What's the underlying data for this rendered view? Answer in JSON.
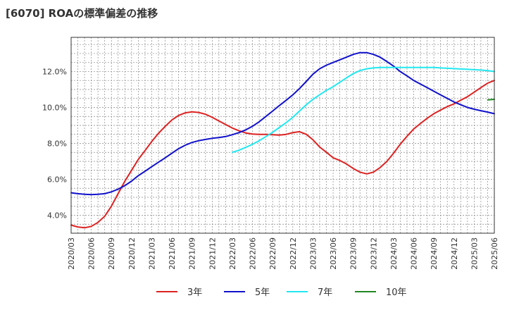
{
  "title": "[6070]  ROAの標準偏差の推移",
  "chart_data": {
    "type": "line",
    "title": "[6070]  ROAの標準偏差の推移",
    "x_ticks": [
      "2020/03",
      "2020/06",
      "2020/09",
      "2020/12",
      "2021/03",
      "2021/06",
      "2021/09",
      "2021/12",
      "2022/03",
      "2022/06",
      "2022/09",
      "2022/12",
      "2023/03",
      "2023/06",
      "2023/09",
      "2023/12",
      "2024/03",
      "2024/06",
      "2024/09",
      "2024/12",
      "2025/03",
      "2025/06"
    ],
    "y_ticks": [
      "4.0%",
      "6.0%",
      "8.0%",
      "10.0%",
      "12.0%"
    ],
    "y_tick_values": [
      4,
      6,
      8,
      10,
      12
    ],
    "ylim": [
      3.0,
      13.9
    ],
    "xlim": [
      0,
      21
    ],
    "grid": true,
    "legend_position": "bottom",
    "series": [
      {
        "name": "3年",
        "color": "#dd2222",
        "x": [
          0,
          0.33,
          0.67,
          1,
          1.33,
          1.67,
          2,
          2.33,
          2.67,
          3,
          3.33,
          3.67,
          4,
          4.33,
          4.67,
          5,
          5.33,
          5.67,
          6,
          6.33,
          6.67,
          7,
          7.33,
          7.67,
          8,
          8.33,
          8.67,
          9,
          9.33,
          9.67,
          10,
          10.33,
          10.67,
          11,
          11.33,
          11.67,
          12,
          12.33,
          12.67,
          13,
          13.33,
          13.67,
          14,
          14.33,
          14.67,
          15,
          15.33,
          15.67,
          16,
          16.33,
          16.67,
          17,
          17.33,
          17.67,
          18,
          18.33,
          18.67,
          19,
          19.33,
          19.67,
          20,
          20.33,
          20.67,
          21
        ],
        "y": [
          3.45,
          3.35,
          3.3,
          3.38,
          3.6,
          3.95,
          4.5,
          5.2,
          5.9,
          6.5,
          7.1,
          7.6,
          8.1,
          8.55,
          8.95,
          9.3,
          9.55,
          9.7,
          9.75,
          9.72,
          9.62,
          9.45,
          9.25,
          9.05,
          8.85,
          8.7,
          8.58,
          8.52,
          8.5,
          8.5,
          8.48,
          8.46,
          8.5,
          8.6,
          8.65,
          8.5,
          8.2,
          7.8,
          7.5,
          7.2,
          7.05,
          6.85,
          6.6,
          6.4,
          6.3,
          6.4,
          6.65,
          7.0,
          7.45,
          7.95,
          8.4,
          8.8,
          9.1,
          9.4,
          9.65,
          9.85,
          10.05,
          10.2,
          10.4,
          10.6,
          10.85,
          11.1,
          11.35,
          11.5
        ]
      },
      {
        "name": "5年",
        "color": "#1111cc",
        "x": [
          0,
          0.33,
          0.67,
          1,
          1.33,
          1.67,
          2,
          2.33,
          2.67,
          3,
          3.33,
          3.67,
          4,
          4.33,
          4.67,
          5,
          5.33,
          5.67,
          6,
          6.33,
          6.67,
          7,
          7.33,
          7.67,
          8,
          8.33,
          8.67,
          9,
          9.33,
          9.67,
          10,
          10.33,
          10.67,
          11,
          11.33,
          11.67,
          12,
          12.33,
          12.67,
          13,
          13.33,
          13.67,
          14,
          14.33,
          14.67,
          15,
          15.33,
          15.67,
          16,
          16.33,
          16.67,
          17,
          17.33,
          17.67,
          18,
          18.33,
          18.67,
          19,
          19.33,
          19.67,
          20,
          20.33,
          20.67,
          21
        ],
        "y": [
          5.25,
          5.2,
          5.17,
          5.15,
          5.17,
          5.2,
          5.3,
          5.45,
          5.65,
          5.9,
          6.2,
          6.45,
          6.7,
          6.95,
          7.2,
          7.45,
          7.7,
          7.9,
          8.05,
          8.15,
          8.22,
          8.28,
          8.32,
          8.38,
          8.48,
          8.6,
          8.75,
          8.95,
          9.2,
          9.5,
          9.8,
          10.1,
          10.4,
          10.7,
          11.05,
          11.45,
          11.85,
          12.15,
          12.35,
          12.5,
          12.65,
          12.8,
          12.95,
          13.05,
          13.05,
          12.95,
          12.8,
          12.55,
          12.3,
          12.0,
          11.75,
          11.5,
          11.3,
          11.1,
          10.9,
          10.7,
          10.5,
          10.3,
          10.15,
          10.0,
          9.9,
          9.82,
          9.74,
          9.65
        ]
      },
      {
        "name": "7年",
        "color": "#22e8f0",
        "x": [
          8,
          8.33,
          8.67,
          9,
          9.33,
          9.67,
          10,
          10.33,
          10.67,
          11,
          11.33,
          11.67,
          12,
          12.33,
          12.67,
          13,
          13.33,
          13.67,
          14,
          14.33,
          14.67,
          15,
          15.33,
          15.67,
          16,
          16.33,
          16.67,
          17,
          17.33,
          17.67,
          18,
          18.33,
          18.67,
          19,
          19.33,
          19.67,
          20,
          20.33,
          20.67,
          21
        ],
        "y": [
          7.5,
          7.62,
          7.78,
          7.95,
          8.15,
          8.38,
          8.62,
          8.88,
          9.15,
          9.45,
          9.8,
          10.15,
          10.45,
          10.7,
          10.95,
          11.15,
          11.4,
          11.65,
          11.88,
          12.05,
          12.15,
          12.2,
          12.22,
          12.22,
          12.22,
          12.22,
          12.22,
          12.22,
          12.22,
          12.22,
          12.22,
          12.2,
          12.18,
          12.16,
          12.14,
          12.12,
          12.1,
          12.08,
          12.05,
          12.0
        ]
      },
      {
        "name": "10年",
        "color": "#228822",
        "x": [
          20.67,
          21
        ],
        "y": [
          10.42,
          10.45
        ]
      }
    ]
  }
}
